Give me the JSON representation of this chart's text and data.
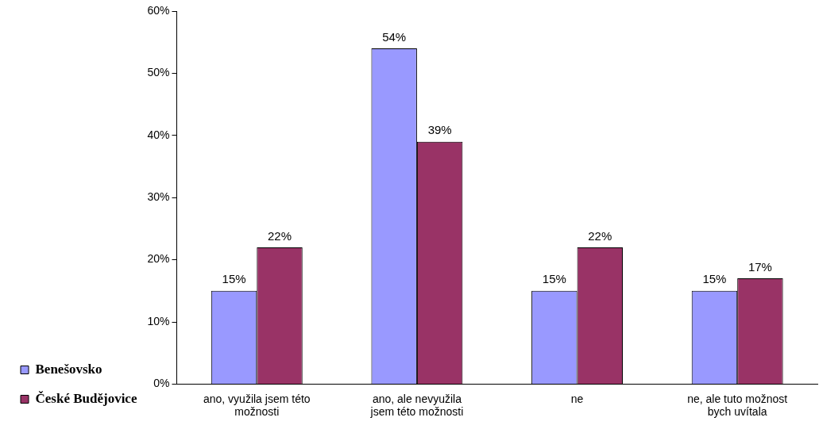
{
  "chart_data": {
    "type": "bar",
    "categories": [
      "ano, využila jsem této možnosti",
      "ano, ale nevyužila jsem této možnosti",
      "ne",
      "ne, ale tuto možnost bych uvítala"
    ],
    "series": [
      {
        "name": "Benešovsko",
        "color": "#9999ff",
        "values": [
          15,
          54,
          15,
          15
        ],
        "value_labels": [
          "15%",
          "54%",
          "15%",
          "15%"
        ]
      },
      {
        "name": "České Budějovice",
        "color": "#993366",
        "values": [
          22,
          39,
          22,
          17
        ],
        "value_labels": [
          "22%",
          "39%",
          "22%",
          "17%"
        ]
      }
    ],
    "ylim": [
      0,
      60
    ],
    "yticks": [
      {
        "value": 0,
        "label": "0%"
      },
      {
        "value": 10,
        "label": "10%"
      },
      {
        "value": 20,
        "label": "20%"
      },
      {
        "value": 30,
        "label": "30%"
      },
      {
        "value": 40,
        "label": "40%"
      },
      {
        "value": 50,
        "label": "50%"
      },
      {
        "value": 60,
        "label": "60%"
      }
    ],
    "grid": false,
    "legend": "bottom left"
  }
}
